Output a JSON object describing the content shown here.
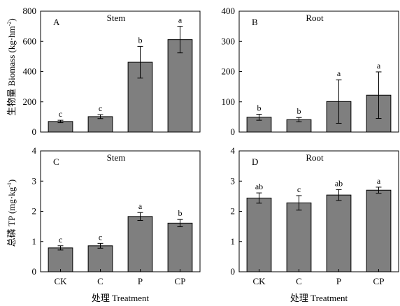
{
  "style": {
    "bar_color": "#7f7f7f",
    "axis_color": "#000000",
    "background": "#ffffff"
  },
  "ylabel_top": "生物量 Biomass (kg·hm",
  "ylabel_top_sup": "-2",
  "ylabel_top_end": ")",
  "ylabel_bottom": "总磷 TP (mg·kg",
  "ylabel_bottom_sup": "-1",
  "ylabel_bottom_end": ")",
  "xlabel_common": "处理 Treatment",
  "chart_data": [
    {
      "id": "A",
      "type": "bar",
      "panel_letter": "A",
      "title": "Stem",
      "categories": [
        "CK",
        "C",
        "P",
        "CP"
      ],
      "values": [
        70,
        102,
        462,
        612
      ],
      "errors": [
        8,
        13,
        105,
        88
      ],
      "sig_labels": [
        "c",
        "c",
        "b",
        "a"
      ],
      "ylim": [
        0,
        800
      ],
      "yticks": [
        0,
        200,
        400,
        600,
        800
      ]
    },
    {
      "id": "B",
      "type": "bar",
      "panel_letter": "B",
      "title": "Root",
      "categories": [
        "CK",
        "C",
        "P",
        "CP"
      ],
      "values": [
        49,
        41,
        101,
        122
      ],
      "errors": [
        10,
        7,
        72,
        77
      ],
      "sig_labels": [
        "b",
        "b",
        "a",
        "a"
      ],
      "ylim": [
        0,
        400
      ],
      "yticks": [
        0,
        100,
        200,
        300,
        400
      ]
    },
    {
      "id": "C",
      "type": "bar",
      "panel_letter": "C",
      "title": "Stem",
      "categories": [
        "CK",
        "C",
        "P",
        "CP"
      ],
      "values": [
        0.79,
        0.86,
        1.83,
        1.61
      ],
      "errors": [
        0.07,
        0.08,
        0.13,
        0.12
      ],
      "sig_labels": [
        "c",
        "c",
        "a",
        "b"
      ],
      "ylim": [
        0,
        4
      ],
      "yticks": [
        0,
        1,
        2,
        3,
        4
      ]
    },
    {
      "id": "D",
      "type": "bar",
      "panel_letter": "D",
      "title": "Root",
      "categories": [
        "CK",
        "C",
        "P",
        "CP"
      ],
      "values": [
        2.44,
        2.28,
        2.54,
        2.7
      ],
      "errors": [
        0.17,
        0.24,
        0.18,
        0.1
      ],
      "sig_labels": [
        "ab",
        "c",
        "ab",
        "a"
      ],
      "ylim": [
        0,
        4
      ],
      "yticks": [
        0,
        1,
        2,
        3,
        4
      ]
    }
  ]
}
